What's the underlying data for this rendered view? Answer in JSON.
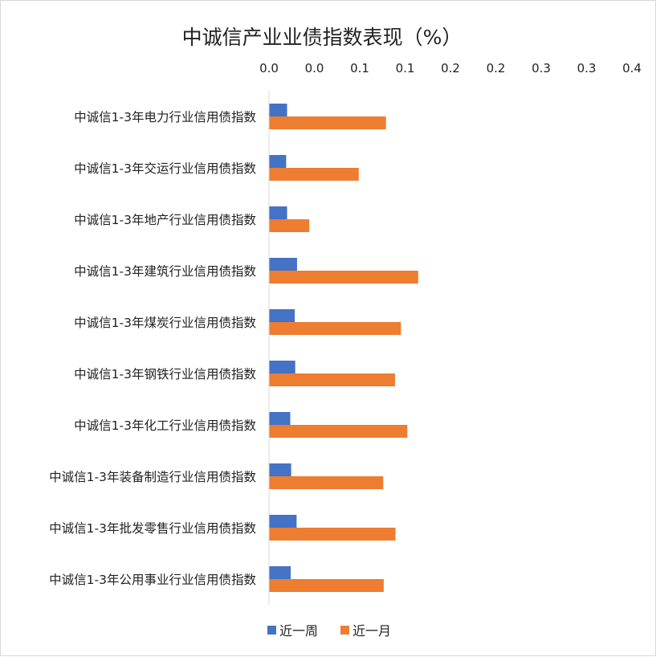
{
  "chart_data": {
    "type": "bar",
    "orientation": "horizontal",
    "title": "中诚信产业业债指数表现（%）",
    "x_axis_position": "top",
    "xlim": [
      0,
      0.4
    ],
    "x_tick_labels": [
      "0.0",
      "0.0",
      "0.1",
      "0.1",
      "0.2",
      "0.2",
      "0.3",
      "0.3",
      "0.4"
    ],
    "categories": [
      "中诚信1-3年电力行业信用债指数",
      "中诚信1-3年交运行业信用债指数",
      "中诚信1-3年地产行业信用债指数",
      "中诚信1-3年建筑行业信用债指数",
      "中诚信1-3年煤炭行业信用债指数",
      "中诚信1-3年钢铁行业信用债指数",
      "中诚信1-3年化工行业信用债指数",
      "中诚信1-3年装备制造行业信用债指数",
      "中诚信1-3年批发零售行业信用债指数",
      "中诚信1-3年公用事业行业信用债指数"
    ],
    "series": [
      {
        "name": "近一周",
        "color": "#4472c4",
        "values": [
          0.0195,
          0.0185,
          0.0195,
          0.0305,
          0.028,
          0.0285,
          0.023,
          0.024,
          0.03,
          0.0235
        ]
      },
      {
        "name": "近一月",
        "color": "#ed7d31",
        "values": [
          0.1285,
          0.0985,
          0.044,
          0.164,
          0.145,
          0.1385,
          0.152,
          0.1255,
          0.139,
          0.126
        ]
      }
    ],
    "grid": false,
    "legend_position": "bottom"
  }
}
